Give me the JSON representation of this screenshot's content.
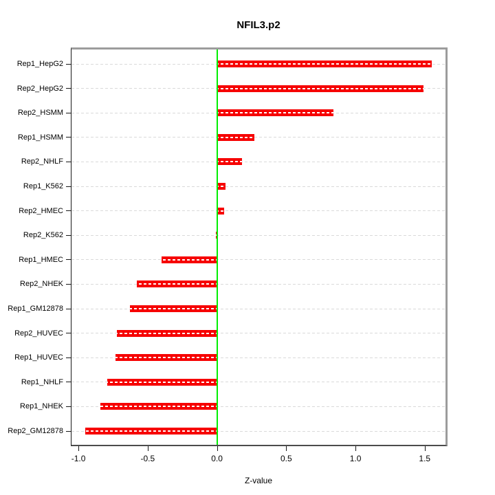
{
  "title": "NFIL3.p2",
  "chart_data": {
    "type": "bar",
    "orientation": "horizontal",
    "title": "NFIL3.p2",
    "xlabel": "Z-value",
    "ylabel": "",
    "categories": [
      "Rep1_HepG2",
      "Rep2_HepG2",
      "Rep2_HSMM",
      "Rep1_HSMM",
      "Rep2_NHLF",
      "Rep1_K562",
      "Rep2_HMEC",
      "Rep2_K562",
      "Rep1_HMEC",
      "Rep2_NHEK",
      "Rep1_GM12878",
      "Rep2_HUVEC",
      "Rep1_HUVEC",
      "Rep1_NHLF",
      "Rep1_NHEK",
      "Rep2_GM12878"
    ],
    "values": [
      1.55,
      1.49,
      0.84,
      0.27,
      0.18,
      0.06,
      0.05,
      -0.01,
      -0.4,
      -0.58,
      -0.63,
      -0.72,
      -0.73,
      -0.79,
      -0.84,
      -0.95
    ],
    "xticks": [
      "-1.0",
      "-0.5",
      "0.0",
      "0.5",
      "1.0",
      "1.5"
    ],
    "xtick_values": [
      -1.0,
      -0.5,
      0.0,
      0.5,
      1.0,
      1.5
    ],
    "xlim": [
      -1.05,
      1.65
    ],
    "grid": true,
    "grid_style": "dashed",
    "legend": "none",
    "colors": {
      "bar": "#f60000",
      "bar_dash": "#ffffff",
      "zero_line": "#00ee00",
      "grid_line": "#d9d9d9",
      "frame_light": "#9c9c9c",
      "frame_dark": "#4b4b4b",
      "axis": "#161616"
    }
  }
}
